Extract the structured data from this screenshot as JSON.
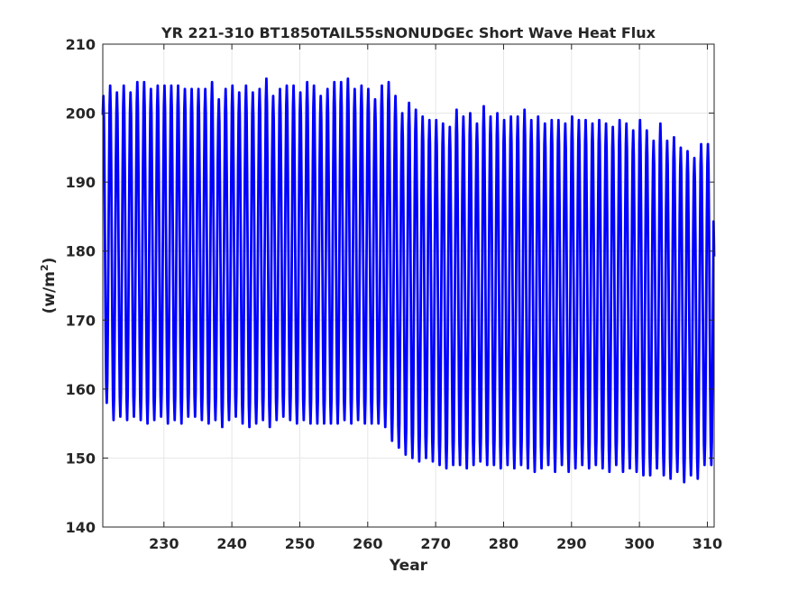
{
  "chart_data": {
    "type": "line",
    "title": "YR 221-310 BT1850TAIL55sNONUDGEc Short Wave Heat Flux",
    "xlabel": "Year",
    "ylabel_main": "(w/m",
    "ylabel_sup": "2",
    "ylabel_close": ")",
    "xlim": [
      221,
      311
    ],
    "ylim": [
      140,
      210
    ],
    "grid": true,
    "xticks": [
      230,
      240,
      250,
      260,
      270,
      280,
      290,
      300,
      310
    ],
    "yticks": [
      140,
      150,
      160,
      170,
      180,
      190,
      200,
      210
    ],
    "series": [
      {
        "color": "#0000ff",
        "period_years": 1,
        "x_start": 221,
        "x_end": 311,
        "annual_max": [
          [
            221,
            202.5
          ],
          [
            222,
            204
          ],
          [
            223,
            203
          ],
          [
            224,
            204
          ],
          [
            225,
            203
          ],
          [
            226,
            204.5
          ],
          [
            227,
            204.5
          ],
          [
            228,
            203.5
          ],
          [
            229,
            204
          ],
          [
            230,
            204
          ],
          [
            231,
            204
          ],
          [
            232,
            204
          ],
          [
            233,
            203.5
          ],
          [
            234,
            203.5
          ],
          [
            235,
            203.5
          ],
          [
            236,
            203.5
          ],
          [
            237,
            204.5
          ],
          [
            238,
            202
          ],
          [
            239,
            203.5
          ],
          [
            240,
            204
          ],
          [
            241,
            203
          ],
          [
            242,
            204
          ],
          [
            243,
            203
          ],
          [
            244,
            203.5
          ],
          [
            245,
            205
          ],
          [
            246,
            202.5
          ],
          [
            247,
            203.5
          ],
          [
            248,
            204
          ],
          [
            249,
            204
          ],
          [
            250,
            203
          ],
          [
            251,
            204.5
          ],
          [
            252,
            204
          ],
          [
            253,
            202.5
          ],
          [
            254,
            203.5
          ],
          [
            255,
            204.5
          ],
          [
            256,
            204.5
          ],
          [
            257,
            205
          ],
          [
            258,
            203.5
          ],
          [
            259,
            204
          ],
          [
            260,
            203.5
          ],
          [
            261,
            202
          ],
          [
            262,
            204
          ],
          [
            263,
            204.5
          ],
          [
            264,
            202.5
          ],
          [
            265,
            200
          ],
          [
            266,
            201.5
          ],
          [
            267,
            200.5
          ],
          [
            268,
            199.5
          ],
          [
            269,
            199
          ],
          [
            270,
            199
          ],
          [
            271,
            198.5
          ],
          [
            272,
            198
          ],
          [
            273,
            200.5
          ],
          [
            274,
            199.5
          ],
          [
            275,
            200
          ],
          [
            276,
            198.5
          ],
          [
            277,
            201
          ],
          [
            278,
            199.5
          ],
          [
            279,
            200
          ],
          [
            280,
            199
          ],
          [
            281,
            199.5
          ],
          [
            282,
            199.5
          ],
          [
            283,
            200.5
          ],
          [
            284,
            199
          ],
          [
            285,
            199.5
          ],
          [
            286,
            198.5
          ],
          [
            287,
            199
          ],
          [
            288,
            199
          ],
          [
            289,
            198.5
          ],
          [
            290,
            199.5
          ],
          [
            291,
            199
          ],
          [
            292,
            199
          ],
          [
            293,
            198.5
          ],
          [
            294,
            199
          ],
          [
            295,
            198.5
          ],
          [
            296,
            198
          ],
          [
            297,
            199
          ],
          [
            298,
            198.5
          ],
          [
            299,
            197.5
          ],
          [
            300,
            199
          ],
          [
            301,
            197.5
          ],
          [
            302,
            196
          ],
          [
            303,
            198.5
          ],
          [
            304,
            196
          ],
          [
            305,
            196.5
          ],
          [
            306,
            195
          ],
          [
            307,
            194.5
          ],
          [
            308,
            193.5
          ],
          [
            309,
            195.5
          ],
          [
            310,
            195.5
          ]
        ],
        "annual_min": [
          [
            221,
            158
          ],
          [
            222,
            155.5
          ],
          [
            223,
            156
          ],
          [
            224,
            155.5
          ],
          [
            225,
            156
          ],
          [
            226,
            155.5
          ],
          [
            227,
            155
          ],
          [
            228,
            155.5
          ],
          [
            229,
            156
          ],
          [
            230,
            155
          ],
          [
            231,
            155.5
          ],
          [
            232,
            155
          ],
          [
            233,
            156
          ],
          [
            234,
            156
          ],
          [
            235,
            155.5
          ],
          [
            236,
            155
          ],
          [
            237,
            155.5
          ],
          [
            238,
            154.5
          ],
          [
            239,
            155.5
          ],
          [
            240,
            156
          ],
          [
            241,
            155
          ],
          [
            242,
            154.5
          ],
          [
            243,
            155
          ],
          [
            244,
            155.5
          ],
          [
            245,
            154.5
          ],
          [
            246,
            155.5
          ],
          [
            247,
            156
          ],
          [
            248,
            155.5
          ],
          [
            249,
            155
          ],
          [
            250,
            155.5
          ],
          [
            251,
            155
          ],
          [
            252,
            155
          ],
          [
            253,
            155
          ],
          [
            254,
            155
          ],
          [
            255,
            155
          ],
          [
            256,
            155.5
          ],
          [
            257,
            155
          ],
          [
            258,
            155.5
          ],
          [
            259,
            155
          ],
          [
            260,
            155
          ],
          [
            261,
            155
          ],
          [
            262,
            154.5
          ],
          [
            263,
            152.5
          ],
          [
            264,
            151.5
          ],
          [
            265,
            150.5
          ],
          [
            266,
            150
          ],
          [
            267,
            149.5
          ],
          [
            268,
            150
          ],
          [
            269,
            149.5
          ],
          [
            270,
            149
          ],
          [
            271,
            148.5
          ],
          [
            272,
            149
          ],
          [
            273,
            149
          ],
          [
            274,
            148.5
          ],
          [
            275,
            149
          ],
          [
            276,
            149.5
          ],
          [
            277,
            149
          ],
          [
            278,
            149
          ],
          [
            279,
            148.5
          ],
          [
            280,
            149
          ],
          [
            281,
            148.5
          ],
          [
            282,
            149
          ],
          [
            283,
            148.5
          ],
          [
            284,
            148
          ],
          [
            285,
            148.5
          ],
          [
            286,
            149
          ],
          [
            287,
            148
          ],
          [
            288,
            149
          ],
          [
            289,
            148
          ],
          [
            290,
            148.5
          ],
          [
            291,
            149
          ],
          [
            292,
            148.5
          ],
          [
            293,
            149
          ],
          [
            294,
            148.5
          ],
          [
            295,
            148
          ],
          [
            296,
            149
          ],
          [
            297,
            148
          ],
          [
            298,
            148.5
          ],
          [
            299,
            148
          ],
          [
            300,
            147.5
          ],
          [
            301,
            147.5
          ],
          [
            302,
            148.5
          ],
          [
            303,
            147.5
          ],
          [
            304,
            147
          ],
          [
            305,
            148
          ],
          [
            306,
            146.5
          ],
          [
            307,
            147.5
          ],
          [
            308,
            147
          ],
          [
            309,
            149
          ],
          [
            310,
            149
          ]
        ]
      }
    ]
  }
}
